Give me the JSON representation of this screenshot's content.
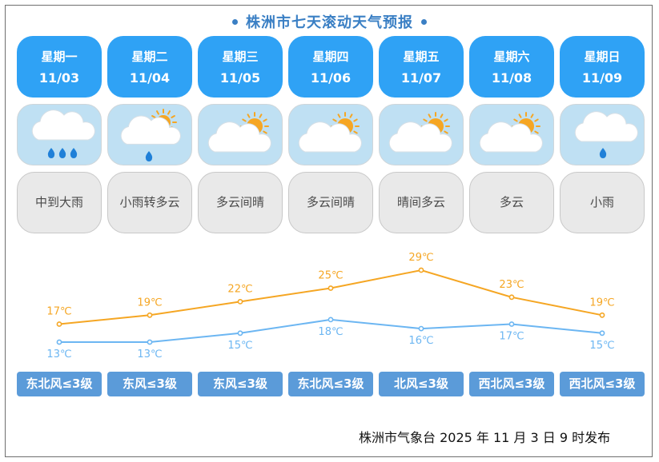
{
  "title": "株洲市七天滚动天气预报",
  "days": [
    {
      "weekday": "星期一",
      "date": "11/03",
      "icon": "rain-heavy-icon",
      "desc": "中到大雨",
      "wind": "东北风≤3级"
    },
    {
      "weekday": "星期二",
      "date": "11/04",
      "icon": "sun-cloud-rain-icon",
      "desc": "小雨转多云",
      "wind": "东风≤3级"
    },
    {
      "weekday": "星期三",
      "date": "11/05",
      "icon": "partly-cloudy-icon",
      "desc": "多云间晴",
      "wind": "东风≤3级"
    },
    {
      "weekday": "星期四",
      "date": "11/06",
      "icon": "partly-cloudy-icon",
      "desc": "多云间晴",
      "wind": "东北风≤3级"
    },
    {
      "weekday": "星期五",
      "date": "11/07",
      "icon": "partly-cloudy-icon",
      "desc": "晴间多云",
      "wind": "北风≤3级"
    },
    {
      "weekday": "星期六",
      "date": "11/08",
      "icon": "partly-cloudy-icon",
      "desc": "多云",
      "wind": "西北风≤3级"
    },
    {
      "weekday": "星期日",
      "date": "11/09",
      "icon": "light-rain-icon",
      "desc": "小雨",
      "wind": "西北风≤3级"
    }
  ],
  "chart_data": {
    "type": "line",
    "categories": [
      "11/03",
      "11/04",
      "11/05",
      "11/06",
      "11/07",
      "11/08",
      "11/09"
    ],
    "unit": "℃",
    "series": [
      {
        "values": [
          17,
          19,
          22,
          25,
          29,
          23,
          19
        ],
        "color": "#f5a623"
      },
      {
        "values": [
          13,
          13,
          15,
          18,
          16,
          17,
          15
        ],
        "color": "#6cb6f2"
      }
    ]
  },
  "footer": "株洲市气象台 2025 年 11 月 3 日 9 时发布",
  "colors": {
    "day_card": "#2fa2f5",
    "icon_card": "#bfe0f3",
    "desc_card": "#e9e9e9",
    "wind_badge": "#5b9bd9",
    "title": "#3a7fc4"
  }
}
